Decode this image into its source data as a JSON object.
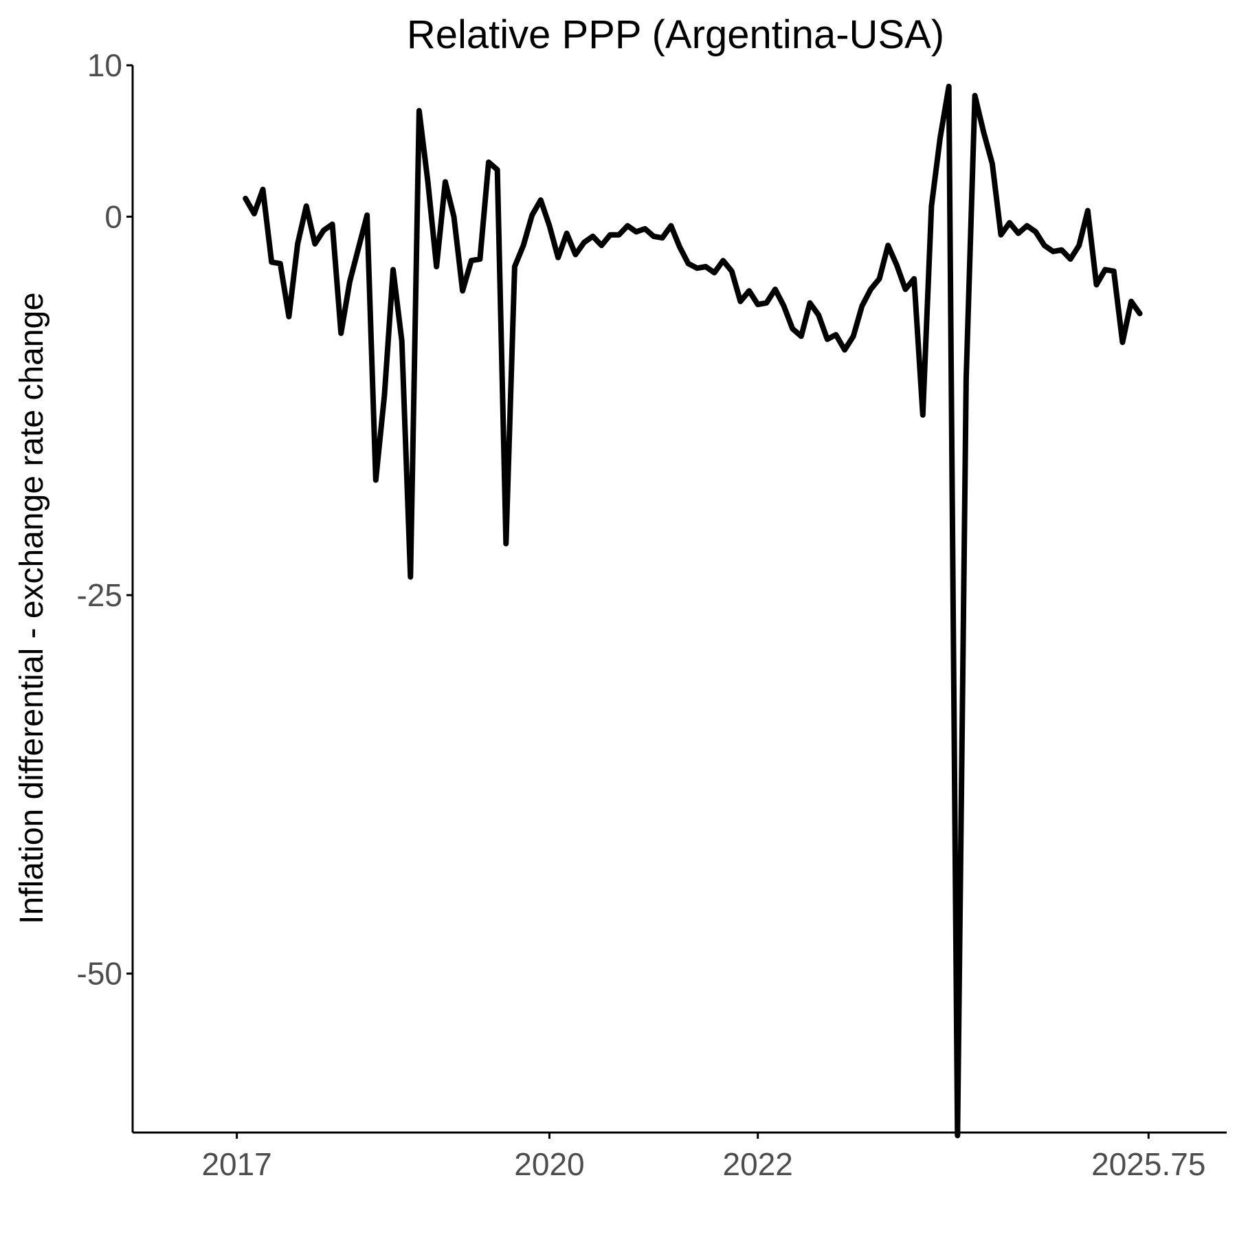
{
  "chart_data": {
    "type": "line",
    "title": "Relative PPP (Argentina-USA)",
    "xlabel": "",
    "ylabel": "Inflation differential - exchange rate change",
    "xlim": [
      2016.0,
      2026.5
    ],
    "ylim": [
      -60.5,
      10
    ],
    "x_ticks": [
      {
        "value": 2017,
        "label": "2017"
      },
      {
        "value": 2020,
        "label": "2020"
      },
      {
        "value": 2022,
        "label": "2022"
      },
      {
        "value": 2025.75,
        "label": "2025.75"
      }
    ],
    "y_ticks": [
      {
        "value": 10,
        "label": "10"
      },
      {
        "value": 0,
        "label": "0"
      },
      {
        "value": -25,
        "label": "-25"
      },
      {
        "value": -50,
        "label": "-50"
      }
    ],
    "grid": false,
    "legend": "none",
    "series": [
      {
        "color": "#000000",
        "x_start": 2017.0833,
        "x_step": 0.0833333,
        "values": [
          1.2,
          0.2,
          1.8,
          -3.0,
          -3.1,
          -6.6,
          -1.8,
          0.7,
          -1.8,
          -0.9,
          -0.5,
          -7.7,
          -4.3,
          -2.1,
          0.1,
          -17.4,
          -11.8,
          -3.5,
          -8.2,
          -23.8,
          7.0,
          2.3,
          -3.3,
          2.3,
          0.0,
          -4.9,
          -2.9,
          -2.8,
          3.6,
          3.1,
          -21.6,
          -3.3,
          -1.9,
          0.1,
          1.1,
          -0.6,
          -2.7,
          -1.1,
          -2.5,
          -1.7,
          -1.3,
          -1.9,
          -1.2,
          -1.2,
          -0.6,
          -1.0,
          -0.8,
          -1.3,
          -1.4,
          -0.6,
          -2.0,
          -3.1,
          -3.4,
          -3.3,
          -3.7,
          -2.9,
          -3.6,
          -5.6,
          -4.9,
          -5.8,
          -5.7,
          -4.8,
          -5.9,
          -7.4,
          -7.9,
          -5.7,
          -6.5,
          -8.1,
          -7.8,
          -8.8,
          -7.9,
          -5.9,
          -4.8,
          -4.1,
          -1.9,
          -3.2,
          -4.8,
          -4.1,
          -13.1,
          0.7,
          5.2,
          8.6,
          -60.7,
          -10.7,
          8.0,
          5.6,
          3.5,
          -1.2,
          -0.4,
          -1.1,
          -0.6,
          -1.0,
          -1.9,
          -2.3,
          -2.2,
          -2.8,
          -1.9,
          0.4,
          -4.5,
          -3.5,
          -3.6,
          -8.3,
          -5.6,
          -6.4
        ]
      }
    ]
  }
}
